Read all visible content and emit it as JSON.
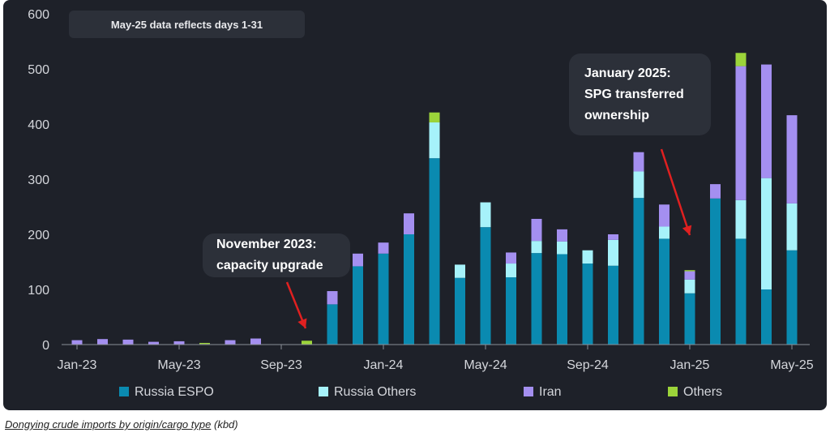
{
  "note": "May-25 data reflects days 1-31",
  "annotations": [
    {
      "lines": [
        "November 2023:",
        "capacity upgrade"
      ]
    },
    {
      "lines": [
        "January 2025:",
        "SPG transferred",
        "ownership"
      ]
    }
  ],
  "caption": {
    "title": "Dongying crude imports by origin/cargo type",
    "unit": "(kbd)"
  },
  "colors": {
    "russia_espo": "#0a8ab0",
    "russia_others": "#a6f2fa",
    "iran": "#a48ff0",
    "others": "#9cd43a",
    "arrow": "#e02020"
  },
  "chart_data": {
    "type": "bar",
    "stacked": true,
    "title": "",
    "xlabel": "",
    "ylabel": "",
    "ylim": [
      0,
      600
    ],
    "yticks": [
      0,
      100,
      200,
      300,
      400,
      500,
      600
    ],
    "grid": false,
    "legend_position": "bottom",
    "categories": [
      "Jan-23",
      "Feb-23",
      "Mar-23",
      "Apr-23",
      "May-23",
      "Jun-23",
      "Jul-23",
      "Aug-23",
      "Sep-23",
      "Oct-23",
      "Nov-23",
      "Dec-23",
      "Jan-24",
      "Feb-24",
      "Mar-24",
      "Apr-24",
      "May-24",
      "Jun-24",
      "Jul-24",
      "Aug-24",
      "Sep-24",
      "Oct-24",
      "Nov-24",
      "Dec-24",
      "Jan-25",
      "Feb-25",
      "Mar-25",
      "Apr-25",
      "May-25"
    ],
    "x_tick_labels": [
      "Jan-23",
      "May-23",
      "Sep-23",
      "Jan-24",
      "May-24",
      "Sep-24",
      "Jan-25",
      "May-25"
    ],
    "series": [
      {
        "name": "Russia ESPO",
        "color": "#0a8ab0",
        "values": [
          0,
          0,
          0,
          0,
          0,
          0,
          0,
          0,
          0,
          0,
          73,
          142,
          165,
          200,
          338,
          121,
          213,
          122,
          166,
          164,
          147,
          143,
          266,
          192,
          93,
          265,
          192,
          100,
          171
        ]
      },
      {
        "name": "Russia Others",
        "color": "#a6f2fa",
        "values": [
          0,
          0,
          0,
          0,
          0,
          0,
          0,
          0,
          0,
          0,
          0,
          0,
          0,
          0,
          65,
          24,
          45,
          25,
          22,
          23,
          24,
          47,
          48,
          22,
          25,
          0,
          70,
          202,
          85
        ]
      },
      {
        "name": "Iran",
        "color": "#a48ff0",
        "values": [
          8,
          10,
          9,
          5,
          6,
          1,
          8,
          11,
          0,
          0,
          24,
          23,
          20,
          38,
          0,
          0,
          0,
          20,
          40,
          22,
          0,
          10,
          35,
          40,
          15,
          26,
          243,
          206,
          160
        ]
      },
      {
        "name": "Others",
        "color": "#9cd43a",
        "values": [
          0,
          0,
          0,
          0,
          0,
          2,
          0,
          0,
          0,
          7,
          0,
          0,
          0,
          0,
          18,
          0,
          0,
          0,
          0,
          0,
          0,
          0,
          0,
          0,
          2,
          0,
          24,
          0,
          0
        ]
      }
    ]
  }
}
